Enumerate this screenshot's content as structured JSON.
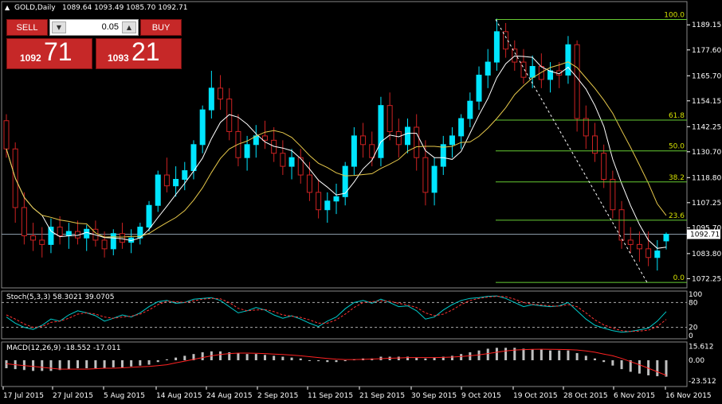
{
  "header": {
    "symbol_label": "GOLD,Daily",
    "ohlc": "1089.64 1093.49 1085.70 1092.71"
  },
  "trade_panel": {
    "sell_label": "SELL",
    "buy_label": "BUY",
    "lot": "0.05",
    "bid_small": "1092",
    "bid_big": "71",
    "ask_small": "1093",
    "ask_big": "21"
  },
  "colors": {
    "background": "#000000",
    "bull_candle": "#00e5ff",
    "bear_candle": "#cc2222",
    "fast_ma": "#ffffff",
    "slow_ma": "#e6c84a",
    "fibo": "#66cc33",
    "fibo_label": "#d4e000",
    "price_line": "#8a9aa8",
    "stoch_main": "#00cccc",
    "stoch_signal": "#ff3333",
    "macd_hist": "#c0c0c0",
    "macd_signal": "#ff2222",
    "trade_red": "#c62828",
    "axis_text": "#ffffff"
  },
  "chart_data": {
    "type": "candlestick",
    "symbol": "GOLD",
    "timeframe": "Daily",
    "last_price": 1092.71,
    "ylim": [
      1068.0,
      1194.0
    ],
    "y_ticks": [
      "1189.15",
      "1177.60",
      "1165.70",
      "1154.15",
      "1142.25",
      "1130.70",
      "1118.80",
      "1107.25",
      "1095.70",
      "1083.80",
      "1072.25"
    ],
    "x_ticks": [
      "17 Jul 2015",
      "27 Jul 2015",
      "5 Aug 2015",
      "14 Aug 2015",
      "24 Aug 2015",
      "2 Sep 2015",
      "11 Sep 2015",
      "21 Sep 2015",
      "30 Sep 2015",
      "9 Oct 2015",
      "19 Oct 2015",
      "28 Oct 2015",
      "6 Nov 2015",
      "16 Nov 2015"
    ],
    "candles": [
      [
        1145,
        1148,
        1128,
        1132
      ],
      [
        1132,
        1135,
        1098,
        1105
      ],
      [
        1105,
        1112,
        1088,
        1092
      ],
      [
        1092,
        1098,
        1085,
        1090
      ],
      [
        1090,
        1096,
        1082,
        1088
      ],
      [
        1088,
        1100,
        1084,
        1096
      ],
      [
        1096,
        1101,
        1088,
        1092
      ],
      [
        1092,
        1098,
        1086,
        1094
      ],
      [
        1094,
        1099,
        1088,
        1091
      ],
      [
        1091,
        1097,
        1085,
        1095
      ],
      [
        1095,
        1099,
        1087,
        1090
      ],
      [
        1090,
        1094,
        1082,
        1086
      ],
      [
        1086,
        1095,
        1083,
        1093
      ],
      [
        1093,
        1098,
        1086,
        1089
      ],
      [
        1089,
        1095,
        1084,
        1091
      ],
      [
        1091,
        1098,
        1088,
        1096
      ],
      [
        1096,
        1108,
        1094,
        1106
      ],
      [
        1106,
        1122,
        1103,
        1120
      ],
      [
        1120,
        1128,
        1112,
        1115
      ],
      [
        1115,
        1124,
        1110,
        1118
      ],
      [
        1118,
        1126,
        1113,
        1122
      ],
      [
        1122,
        1136,
        1118,
        1134
      ],
      [
        1134,
        1152,
        1130,
        1150
      ],
      [
        1150,
        1168,
        1146,
        1160
      ],
      [
        1160,
        1166,
        1150,
        1155
      ],
      [
        1155,
        1160,
        1136,
        1140
      ],
      [
        1140,
        1148,
        1124,
        1128
      ],
      [
        1128,
        1138,
        1122,
        1134
      ],
      [
        1134,
        1143,
        1128,
        1138
      ],
      [
        1138,
        1145,
        1132,
        1136
      ],
      [
        1136,
        1142,
        1126,
        1130
      ],
      [
        1130,
        1136,
        1120,
        1124
      ],
      [
        1124,
        1132,
        1118,
        1128
      ],
      [
        1128,
        1132,
        1116,
        1120
      ],
      [
        1120,
        1126,
        1108,
        1112
      ],
      [
        1112,
        1118,
        1100,
        1104
      ],
      [
        1104,
        1112,
        1098,
        1108
      ],
      [
        1108,
        1116,
        1102,
        1110
      ],
      [
        1110,
        1126,
        1106,
        1124
      ],
      [
        1124,
        1142,
        1120,
        1138
      ],
      [
        1138,
        1144,
        1128,
        1134
      ],
      [
        1134,
        1140,
        1124,
        1128
      ],
      [
        1128,
        1156,
        1124,
        1152
      ],
      [
        1152,
        1158,
        1136,
        1140
      ],
      [
        1140,
        1146,
        1128,
        1134
      ],
      [
        1134,
        1146,
        1130,
        1142
      ],
      [
        1142,
        1148,
        1122,
        1128
      ],
      [
        1128,
        1136,
        1106,
        1112
      ],
      [
        1112,
        1128,
        1106,
        1124
      ],
      [
        1124,
        1138,
        1120,
        1134
      ],
      [
        1134,
        1142,
        1128,
        1138
      ],
      [
        1138,
        1148,
        1132,
        1146
      ],
      [
        1146,
        1158,
        1142,
        1154
      ],
      [
        1154,
        1170,
        1150,
        1166
      ],
      [
        1166,
        1178,
        1160,
        1172
      ],
      [
        1172,
        1192,
        1168,
        1186
      ],
      [
        1186,
        1190,
        1174,
        1178
      ],
      [
        1178,
        1182,
        1168,
        1172
      ],
      [
        1172,
        1178,
        1162,
        1165
      ],
      [
        1165,
        1175,
        1160,
        1170
      ],
      [
        1170,
        1176,
        1160,
        1164
      ],
      [
        1164,
        1172,
        1158,
        1168
      ],
      [
        1168,
        1172,
        1160,
        1166
      ],
      [
        1166,
        1184,
        1162,
        1180
      ],
      [
        1180,
        1182,
        1140,
        1146
      ],
      [
        1146,
        1152,
        1132,
        1138
      ],
      [
        1138,
        1144,
        1126,
        1130
      ],
      [
        1130,
        1134,
        1114,
        1118
      ],
      [
        1118,
        1122,
        1100,
        1104
      ],
      [
        1104,
        1108,
        1086,
        1090
      ],
      [
        1090,
        1096,
        1084,
        1088
      ],
      [
        1088,
        1094,
        1080,
        1086
      ],
      [
        1086,
        1094,
        1078,
        1082
      ],
      [
        1082,
        1090,
        1076,
        1085
      ],
      [
        1089.64,
        1093.49,
        1085.7,
        1092.71
      ]
    ],
    "fibonacci": {
      "levels": [
        {
          "label": "100.0",
          "price": 1191.6
        },
        {
          "label": "61.8",
          "price": 1145.3
        },
        {
          "label": "50.0",
          "price": 1131.1
        },
        {
          "label": "38.2",
          "price": 1116.8
        },
        {
          "label": "23.6",
          "price": 1099.2
        },
        {
          "label": "0.0",
          "price": 1070.5
        }
      ]
    },
    "stochastic": {
      "label": "Stoch(5,3,3) 58.3021 39.0705",
      "ylim": [
        0,
        100
      ],
      "levels": [
        20,
        80
      ],
      "ticks": [
        "100",
        "80",
        "20",
        "0"
      ],
      "main": [
        45,
        30,
        20,
        15,
        25,
        40,
        35,
        50,
        60,
        55,
        48,
        35,
        42,
        50,
        45,
        55,
        70,
        82,
        85,
        78,
        80,
        88,
        90,
        92,
        85,
        70,
        55,
        60,
        68,
        62,
        50,
        42,
        48,
        40,
        30,
        22,
        35,
        45,
        65,
        80,
        85,
        78,
        88,
        80,
        70,
        72,
        60,
        40,
        45,
        62,
        75,
        85,
        90,
        92,
        95,
        96,
        90,
        80,
        70,
        75,
        72,
        70,
        72,
        80,
        60,
        40,
        25,
        18,
        12,
        8,
        10,
        14,
        18,
        35,
        58
      ],
      "signal": [
        50,
        40,
        28,
        20,
        22,
        32,
        35,
        42,
        52,
        55,
        52,
        45,
        42,
        45,
        47,
        52,
        62,
        75,
        83,
        82,
        80,
        84,
        88,
        90,
        89,
        80,
        66,
        60,
        62,
        63,
        58,
        50,
        47,
        44,
        38,
        30,
        30,
        38,
        52,
        68,
        80,
        82,
        84,
        83,
        78,
        74,
        68,
        55,
        48,
        52,
        62,
        75,
        85,
        90,
        93,
        95,
        94,
        88,
        80,
        76,
        74,
        72,
        71,
        75,
        70,
        55,
        38,
        26,
        18,
        12,
        10,
        11,
        13,
        22,
        39
      ]
    },
    "macd": {
      "label": "MACD(12,26,9) -18.552 -17.011",
      "ylim": [
        -26,
        17
      ],
      "ticks": [
        "15.612",
        "0.00",
        "-23.512"
      ],
      "hist": [
        -9,
        -10,
        -11,
        -12,
        -12,
        -12,
        -11,
        -10,
        -9,
        -9,
        -9,
        -9,
        -8,
        -8,
        -7,
        -6,
        -5,
        -2,
        1,
        3,
        5,
        7,
        9,
        10,
        10,
        9,
        8,
        7,
        7,
        6,
        5,
        4,
        3,
        2,
        0,
        -1,
        -2,
        -2,
        -1,
        1,
        2,
        2,
        4,
        4,
        4,
        4,
        3,
        2,
        3,
        4,
        5,
        7,
        9,
        11,
        13,
        14,
        14,
        14,
        13,
        12,
        12,
        11,
        11,
        11,
        8,
        5,
        2,
        -2,
        -6,
        -10,
        -13,
        -15,
        -17,
        -18,
        -18.5
      ],
      "signal": [
        -4,
        -5,
        -6,
        -7,
        -8,
        -9,
        -10,
        -10,
        -10,
        -10,
        -9.5,
        -9,
        -9,
        -8.5,
        -8,
        -7.5,
        -7,
        -6,
        -5,
        -3,
        -1,
        1,
        3,
        5,
        6.5,
        7.5,
        8,
        8,
        7.8,
        7.5,
        7,
        6.5,
        5.8,
        5,
        4,
        3,
        2,
        1.2,
        0.8,
        0.8,
        1,
        1.3,
        1.8,
        2.2,
        2.6,
        3,
        3,
        3,
        3,
        3.2,
        3.6,
        4.2,
        5,
        6,
        7.5,
        9,
        10.5,
        11.5,
        12,
        12.3,
        12.4,
        12.3,
        12.2,
        12,
        11.5,
        10.5,
        9,
        7,
        5,
        2,
        -1.5,
        -5,
        -9,
        -13,
        -17
      ]
    }
  }
}
